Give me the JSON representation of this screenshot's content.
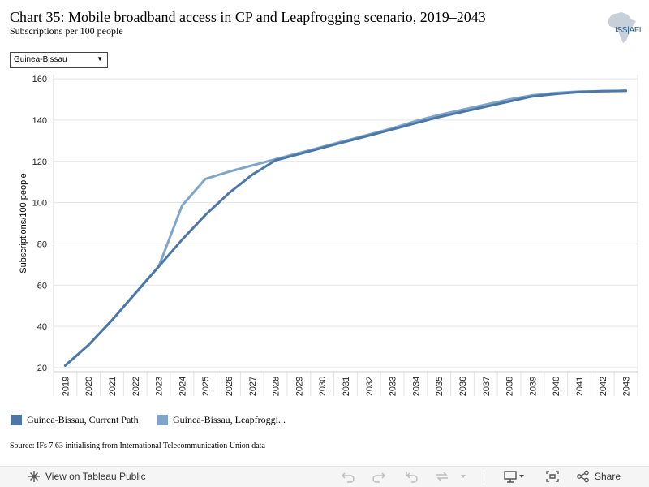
{
  "header": {
    "title": "Chart 35: Mobile broadband access in CP and Leapfrogging scenario, 2019–2043",
    "subtitle": "Subscriptions per 100 people"
  },
  "logo": {
    "text": "ISS|AFI",
    "icon": "africa-map-icon"
  },
  "filter": {
    "selected": "Guinea-Bissau"
  },
  "legend": [
    {
      "label": "Guinea-Bissau, Current Path",
      "color": "#4c78a8"
    },
    {
      "label": "Guinea-Bissau, Leapfroggi...",
      "color": "#7fa6c9"
    }
  ],
  "source": "Source: IFs 7.63 initialising from International Telecommunication Union data",
  "toolbar": {
    "view_label": "View on Tableau Public",
    "share_label": "Share"
  },
  "chart_data": {
    "type": "line",
    "title": "Chart 35: Mobile broadband access in CP and Leapfrogging scenario, 2019–2043",
    "subtitle": "Subscriptions per 100 people",
    "xlabel": "",
    "ylabel": "Subscriptions/100 people",
    "ylim": [
      18,
      162
    ],
    "yticks": [
      20,
      40,
      60,
      80,
      100,
      120,
      140,
      160
    ],
    "grid": true,
    "legend_position": "bottom-left",
    "x": [
      "2019",
      "2020",
      "2021",
      "2022",
      "2023",
      "2024",
      "2025",
      "2026",
      "2027",
      "2028",
      "2029",
      "2030",
      "2031",
      "2032",
      "2033",
      "2034",
      "2035",
      "2036",
      "2037",
      "2038",
      "2039",
      "2040",
      "2041",
      "2042",
      "2043"
    ],
    "series": [
      {
        "name": "Guinea-Bissau, Current Path",
        "color": "#4c78a8",
        "values": [
          21,
          31,
          43,
          56,
          69,
          82,
          94,
          104.5,
          113.5,
          120.5,
          123.5,
          126.5,
          129.5,
          132.5,
          135.5,
          138.5,
          141.5,
          144,
          146.5,
          149,
          151.5,
          152.7,
          153.6,
          154,
          154.2
        ]
      },
      {
        "name": "Guinea-Bissau, Leapfroggi...",
        "color": "#7fa6c9",
        "values": [
          21,
          31,
          43,
          56,
          69,
          98.5,
          111.5,
          115,
          118,
          121,
          124,
          127,
          130,
          133,
          136,
          139.5,
          142.5,
          145,
          147.5,
          150,
          152,
          153.2,
          153.8,
          154,
          154.2
        ]
      }
    ]
  }
}
